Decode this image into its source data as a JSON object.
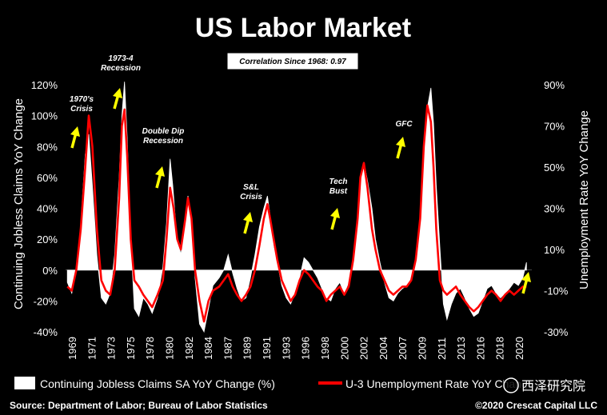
{
  "title": "US Labor Market",
  "correlation_label": "Correlation Since 1968: 0.97",
  "source": "Source: Department of Labor; Bureau of Labor Statistics",
  "copyright": "©2020 Crescat Capital LLC",
  "watermark": "西泽研究院",
  "colors": {
    "claims": "#ffffff",
    "unemployment": "#ff0000",
    "arrow": "#ffff00",
    "background": "#000000"
  },
  "chart_data": {
    "type": "area",
    "xlabel": "",
    "ylabel": "Continuing Jobless Claims YoY Change",
    "y2label": "Unemployment Rate YoY Change",
    "ylim": [
      -40,
      120
    ],
    "y2lim": [
      -30,
      90
    ],
    "xlim": [
      1968.3,
      2020.5
    ],
    "x_ticks": [
      "1969",
      "1971",
      "1973",
      "1975",
      "1978",
      "1980",
      "1982",
      "1984",
      "1987",
      "1989",
      "1991",
      "1993",
      "1996",
      "1998",
      "2000",
      "2002",
      "2004",
      "2007",
      "2009",
      "2011",
      "2013",
      "2016",
      "2018",
      "2020"
    ],
    "y_ticks": [
      "120%",
      "100%",
      "80%",
      "60%",
      "40%",
      "20%",
      "0%",
      "-20%",
      "-40%"
    ],
    "y2_ticks": [
      "90%",
      "70%",
      "50%",
      "30%",
      "10%",
      "-10%",
      "-30%"
    ],
    "legend_position": "bottom",
    "series": [
      {
        "name": "Continuing Jobless Claims SA YoY Change (%)",
        "axis": "left",
        "style": "area",
        "x": [
          1968.5,
          1969,
          1969.6,
          1970,
          1970.5,
          1970.9,
          1971.3,
          1971.8,
          1972.3,
          1972.8,
          1973.3,
          1973.8,
          1974.3,
          1974.6,
          1974.9,
          1975.2,
          1975.6,
          1976,
          1976.5,
          1977,
          1977.5,
          1978,
          1978.6,
          1979.2,
          1979.6,
          1980,
          1980.3,
          1980.7,
          1981.2,
          1981.7,
          1982,
          1982.4,
          1982.8,
          1983.3,
          1983.8,
          1984.3,
          1984.8,
          1985.5,
          1986,
          1986.5,
          1987,
          1987.5,
          1988,
          1988.5,
          1989,
          1989.5,
          1990,
          1990.5,
          1990.9,
          1991.2,
          1991.6,
          1992,
          1992.5,
          1993,
          1993.5,
          1994,
          1994.5,
          1995,
          1995.5,
          1996,
          1996.5,
          1997,
          1997.5,
          1998,
          1998.5,
          1999,
          1999.5,
          2000,
          2000.5,
          2001,
          2001.3,
          2001.7,
          2002.1,
          2002.6,
          2003,
          2003.5,
          2004,
          2004.5,
          2005,
          2005.5,
          2006,
          2006.5,
          2007,
          2007.5,
          2008,
          2008.4,
          2008.8,
          2009.2,
          2009.5,
          2009.8,
          2010.2,
          2010.6,
          2011,
          2011.5,
          2012,
          2012.5,
          2013,
          2013.5,
          2014,
          2014.5,
          2015,
          2015.5,
          2016,
          2016.5,
          2017,
          2017.5,
          2018,
          2018.5,
          2019,
          2019.5,
          2019.9
        ],
        "y": [
          -8,
          -15,
          5,
          30,
          75,
          88,
          55,
          10,
          -18,
          -22,
          -15,
          10,
          60,
          100,
          122,
          85,
          20,
          -25,
          -30,
          -18,
          -22,
          -28,
          -18,
          2,
          30,
          72,
          55,
          25,
          10,
          30,
          48,
          35,
          -5,
          -35,
          -40,
          -25,
          -10,
          -5,
          0,
          10,
          -2,
          -12,
          -20,
          -18,
          -5,
          10,
          28,
          40,
          48,
          35,
          15,
          5,
          -10,
          -18,
          -22,
          -15,
          -5,
          8,
          5,
          0,
          -5,
          -12,
          -18,
          -20,
          -12,
          -8,
          -15,
          -8,
          5,
          30,
          55,
          70,
          58,
          40,
          20,
          5,
          -8,
          -18,
          -20,
          -15,
          -12,
          -10,
          -5,
          5,
          30,
          70,
          105,
          118,
          95,
          55,
          15,
          -22,
          -32,
          -22,
          -15,
          -12,
          -18,
          -25,
          -30,
          -28,
          -20,
          -12,
          -10,
          -15,
          -18,
          -15,
          -12,
          -8,
          -10,
          -5,
          5
        ]
      },
      {
        "name": "U-3 Unemployment Rate YoY Change",
        "axis": "right",
        "style": "line",
        "x": [
          1968.5,
          1969,
          1969.5,
          1970,
          1970.5,
          1970.9,
          1971.3,
          1971.8,
          1972.3,
          1972.8,
          1973.3,
          1973.8,
          1974.3,
          1974.6,
          1974.9,
          1975.2,
          1975.6,
          1976,
          1976.5,
          1977,
          1977.5,
          1978,
          1978.6,
          1979.2,
          1979.6,
          1980,
          1980.4,
          1980.8,
          1981.2,
          1981.7,
          1982,
          1982.4,
          1982.8,
          1983.3,
          1983.8,
          1984.3,
          1984.8,
          1985.5,
          1986,
          1986.5,
          1987,
          1987.5,
          1988,
          1988.5,
          1989,
          1989.5,
          1990,
          1990.5,
          1990.9,
          1991.2,
          1991.6,
          1992,
          1992.5,
          1993,
          1993.5,
          1994,
          1994.5,
          1995,
          1995.5,
          1996,
          1996.5,
          1997,
          1997.5,
          1998,
          1998.5,
          1999,
          1999.5,
          2000,
          2000.5,
          2001,
          2001.3,
          2001.7,
          2002.1,
          2002.6,
          2003,
          2003.5,
          2004,
          2004.5,
          2005,
          2005.5,
          2006,
          2006.5,
          2007,
          2007.5,
          2008,
          2008.4,
          2008.8,
          2009.2,
          2009.5,
          2009.8,
          2010.2,
          2010.6,
          2011,
          2011.5,
          2012,
          2012.5,
          2013,
          2013.5,
          2014,
          2014.5,
          2015,
          2015.5,
          2016,
          2016.5,
          2017,
          2017.5,
          2018,
          2018.5,
          2019,
          2019.5,
          2019.9
        ],
        "y": [
          -8,
          -10,
          0,
          20,
          50,
          75,
          60,
          20,
          -5,
          -10,
          -12,
          0,
          35,
          70,
          78,
          55,
          15,
          -5,
          -8,
          -12,
          -15,
          -18,
          -12,
          -5,
          15,
          40,
          30,
          15,
          10,
          25,
          35,
          25,
          0,
          -15,
          -25,
          -15,
          -10,
          -8,
          -5,
          -2,
          -8,
          -12,
          -15,
          -12,
          -8,
          0,
          12,
          25,
          32,
          25,
          15,
          5,
          -5,
          -10,
          -15,
          -12,
          -5,
          0,
          -2,
          -5,
          -8,
          -10,
          -15,
          -12,
          -10,
          -8,
          -12,
          -8,
          5,
          25,
          45,
          52,
          40,
          20,
          10,
          0,
          -5,
          -10,
          -12,
          -10,
          -8,
          -8,
          -5,
          5,
          25,
          60,
          80,
          72,
          50,
          20,
          -5,
          -10,
          -12,
          -10,
          -8,
          -12,
          -15,
          -18,
          -20,
          -18,
          -15,
          -12,
          -10,
          -12,
          -15,
          -12,
          -10,
          -12,
          -10,
          -8,
          -8
        ]
      }
    ],
    "annotations": [
      {
        "text": [
          "1970's",
          "Crisis"
        ],
        "x": 1970.2,
        "arrow": true
      },
      {
        "text": [
          "1973-4",
          "Recession"
        ],
        "x": 1974.2,
        "arrow": true
      },
      {
        "text": [
          "Double Dip",
          "Recession"
        ],
        "x": 1981.5,
        "arrow": true
      },
      {
        "text": [
          "S&L",
          "Crisis"
        ],
        "x": 1990.1,
        "arrow": true
      },
      {
        "text": [
          "Tech",
          "Bust"
        ],
        "x": 2000.0,
        "arrow": true
      },
      {
        "text": [
          "GFC"
        ],
        "x": 2007.8,
        "arrow": true
      },
      {
        "text": [],
        "x": 2020.3,
        "arrow": true
      }
    ]
  }
}
